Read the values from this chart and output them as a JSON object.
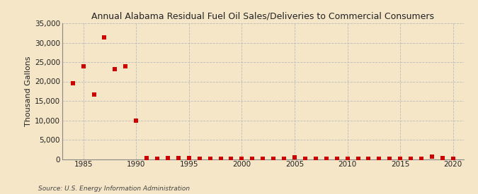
{
  "title": "Annual Alabama Residual Fuel Oil Sales/Deliveries to Commercial Consumers",
  "ylabel": "Thousand Gallons",
  "source": "Source: U.S. Energy Information Administration",
  "background_color": "#f5e6c8",
  "plot_background_color": "#f5e6c8",
  "marker_color": "#cc0000",
  "marker": "s",
  "marker_size": 4,
  "xlim": [
    1983,
    2021
  ],
  "ylim": [
    0,
    35000
  ],
  "yticks": [
    0,
    5000,
    10000,
    15000,
    20000,
    25000,
    30000,
    35000
  ],
  "xticks": [
    1985,
    1990,
    1995,
    2000,
    2005,
    2010,
    2015,
    2020
  ],
  "data": {
    "1984": 19500,
    "1985": 24000,
    "1986": 16700,
    "1987": 31300,
    "1988": 23200,
    "1989": 24000,
    "1990": 10000,
    "1991": 200,
    "1992": 150,
    "1993": 300,
    "1994": 250,
    "1995": 200,
    "1996": 180,
    "1997": 150,
    "1998": 100,
    "1999": 80,
    "2000": 120,
    "2001": 100,
    "2002": 80,
    "2003": 100,
    "2004": 90,
    "2005": 400,
    "2006": 80,
    "2007": 80,
    "2008": 80,
    "2009": 60,
    "2010": 60,
    "2011": 60,
    "2012": 60,
    "2013": 80,
    "2014": 80,
    "2015": 80,
    "2016": 80,
    "2017": 80,
    "2018": 600,
    "2019": 200,
    "2020": 100
  }
}
